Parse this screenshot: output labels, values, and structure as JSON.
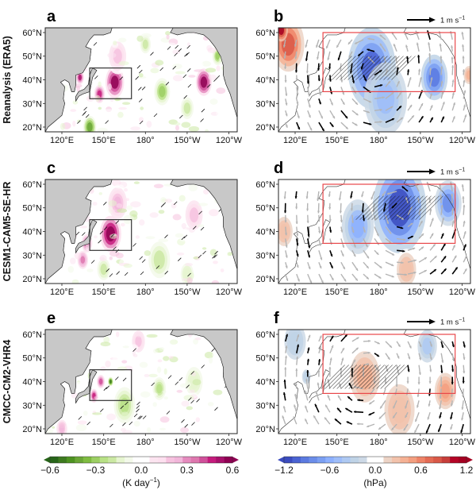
{
  "figure": {
    "panels": [
      {
        "letter": "a",
        "row": 0,
        "col": 0,
        "kind": "heating",
        "row_label": "Reanalysis (ERA5)"
      },
      {
        "letter": "b",
        "row": 0,
        "col": 1,
        "kind": "slp_wind",
        "ref_arrow": "1 m s",
        "ref_exp": "−1"
      },
      {
        "letter": "c",
        "row": 1,
        "col": 0,
        "kind": "heating",
        "row_label": "CESM1-CAM5-SE-HR"
      },
      {
        "letter": "d",
        "row": 1,
        "col": 1,
        "kind": "slp_wind",
        "ref_arrow": "1 m s",
        "ref_exp": "−1"
      },
      {
        "letter": "e",
        "row": 2,
        "col": 0,
        "kind": "heating",
        "row_label": "CMCC-CM2-VHR4"
      },
      {
        "letter": "f",
        "row": 2,
        "col": 1,
        "kind": "slp_wind",
        "ref_arrow": "1 m s",
        "ref_exp": "−1"
      }
    ],
    "x_tick_labels": [
      "120°E",
      "150°E",
      "180°",
      "150°W",
      "120°W"
    ],
    "y_tick_labels": [
      "60°N",
      "50°N",
      "40°N",
      "30°N",
      "20°N"
    ],
    "colors": {
      "land": "#c8c8c8",
      "black_box": "#333333",
      "red_box": "#e8474a",
      "wind_sig": "#000000",
      "wind_insig": "#b4b4b4"
    }
  },
  "chart_data": [
    {
      "type": "heatmap",
      "panel": "a",
      "title": "a",
      "row_label": "Reanalysis (ERA5)",
      "variable": "diabatic heating anomaly",
      "units": "K day−1",
      "xlim_deg_east": [
        108,
        246
      ],
      "ylim_deg_north": [
        18,
        62
      ],
      "x_ticks": [
        120,
        150,
        180,
        210,
        240
      ],
      "y_ticks": [
        20,
        30,
        40,
        50,
        60
      ],
      "box": {
        "lon": [
          140,
          170
        ],
        "lat": [
          32,
          45
        ],
        "color": "black"
      },
      "features": [
        {
          "lon": 158,
          "lat": 39,
          "value": 0.55,
          "radius_deg": 7
        },
        {
          "lon": 147,
          "lat": 34,
          "value": 0.45,
          "radius_deg": 4
        },
        {
          "lon": 133,
          "lat": 41,
          "value": 0.5,
          "radius_deg": 3
        },
        {
          "lon": 222,
          "lat": 39,
          "value": 0.55,
          "radius_deg": 6
        },
        {
          "lon": 160,
          "lat": 50,
          "value": 0.2,
          "radius_deg": 8
        },
        {
          "lon": 192,
          "lat": 35,
          "value": -0.3,
          "radius_deg": 6
        },
        {
          "lon": 210,
          "lat": 28,
          "value": -0.2,
          "radius_deg": 6
        },
        {
          "lon": 232,
          "lat": 50,
          "value": -0.3,
          "radius_deg": 4
        },
        {
          "lon": 140,
          "lat": 20,
          "value": -0.4,
          "radius_deg": 5
        },
        {
          "lon": 180,
          "lat": 55,
          "value": -0.2,
          "radius_deg": 5
        }
      ]
    },
    {
      "type": "heatmap",
      "panel": "b",
      "title": "b",
      "variable": "sea level pressure anomaly with wind vectors",
      "units": "hPa",
      "xlim_deg_east": [
        108,
        246
      ],
      "ylim_deg_north": [
        18,
        62
      ],
      "x_ticks": [
        120,
        150,
        180,
        210,
        240
      ],
      "y_ticks": [
        20,
        30,
        40,
        50,
        60
      ],
      "box": {
        "lon": [
          140,
          235
        ],
        "lat": [
          35,
          60
        ],
        "color": "red"
      },
      "reference_vector": "1 m s−1",
      "features": [
        {
          "lon": 175,
          "lat": 45,
          "value": -1.0,
          "radius_deg": 18
        },
        {
          "lon": 220,
          "lat": 41,
          "value": -0.9,
          "radius_deg": 10
        },
        {
          "lon": 185,
          "lat": 32,
          "value": -0.5,
          "radius_deg": 16
        },
        {
          "lon": 115,
          "lat": 55,
          "value": 0.8,
          "radius_deg": 12
        },
        {
          "lon": 110,
          "lat": 61,
          "value": 1.1,
          "radius_deg": 5
        },
        {
          "lon": 245,
          "lat": 42,
          "value": 0.4,
          "radius_deg": 5
        }
      ]
    },
    {
      "type": "heatmap",
      "panel": "c",
      "title": "c",
      "row_label": "CESM1-CAM5-SE-HR",
      "variable": "diabatic heating anomaly",
      "units": "K day−1",
      "xlim_deg_east": [
        108,
        246
      ],
      "ylim_deg_north": [
        18,
        62
      ],
      "x_ticks": [
        120,
        150,
        180,
        210,
        240
      ],
      "y_ticks": [
        20,
        30,
        40,
        50,
        60
      ],
      "box": {
        "lon": [
          140,
          170
        ],
        "lat": [
          32,
          45
        ],
        "color": "black"
      },
      "features": [
        {
          "lon": 155,
          "lat": 39,
          "value": 0.6,
          "radius_deg": 8
        },
        {
          "lon": 138,
          "lat": 35,
          "value": 0.4,
          "radius_deg": 4
        },
        {
          "lon": 135,
          "lat": 28,
          "value": 0.35,
          "radius_deg": 4
        },
        {
          "lon": 160,
          "lat": 52,
          "value": 0.25,
          "radius_deg": 7
        },
        {
          "lon": 215,
          "lat": 47,
          "value": 0.2,
          "radius_deg": 8
        },
        {
          "lon": 190,
          "lat": 28,
          "value": -0.2,
          "radius_deg": 10
        },
        {
          "lon": 150,
          "lat": 24,
          "value": -0.2,
          "radius_deg": 6
        },
        {
          "lon": 210,
          "lat": 22,
          "value": -0.15,
          "radius_deg": 6
        }
      ]
    },
    {
      "type": "heatmap",
      "panel": "d",
      "title": "d",
      "variable": "sea level pressure anomaly with wind vectors",
      "units": "hPa",
      "xlim_deg_east": [
        108,
        246
      ],
      "ylim_deg_north": [
        18,
        62
      ],
      "x_ticks": [
        120,
        150,
        180,
        210,
        240
      ],
      "y_ticks": [
        20,
        30,
        40,
        50,
        60
      ],
      "box": {
        "lon": [
          140,
          235
        ],
        "lat": [
          35,
          60
        ],
        "color": "red"
      },
      "reference_vector": "1 m s−1",
      "features": [
        {
          "lon": 195,
          "lat": 50,
          "value": -1.1,
          "radius_deg": 20
        },
        {
          "lon": 165,
          "lat": 42,
          "value": -0.6,
          "radius_deg": 12
        },
        {
          "lon": 230,
          "lat": 52,
          "value": -0.8,
          "radius_deg": 10
        },
        {
          "lon": 200,
          "lat": 24,
          "value": 0.3,
          "radius_deg": 9
        },
        {
          "lon": 112,
          "lat": 40,
          "value": 0.3,
          "radius_deg": 8
        }
      ]
    },
    {
      "type": "heatmap",
      "panel": "e",
      "title": "e",
      "row_label": "CMCC-CM2-VHR4",
      "variable": "diabatic heating anomaly",
      "units": "K day−1",
      "xlim_deg_east": [
        108,
        246
      ],
      "ylim_deg_north": [
        18,
        62
      ],
      "x_ticks": [
        120,
        150,
        180,
        210,
        240
      ],
      "y_ticks": [
        20,
        30,
        40,
        50,
        60
      ],
      "box": {
        "lon": [
          140,
          170
        ],
        "lat": [
          32,
          45
        ],
        "color": "black"
      },
      "features": [
        {
          "lon": 148,
          "lat": 40,
          "value": 0.4,
          "radius_deg": 3
        },
        {
          "lon": 143,
          "lat": 34,
          "value": 0.45,
          "radius_deg": 3
        },
        {
          "lon": 155,
          "lat": 40,
          "value": -0.5,
          "radius_deg": 2
        },
        {
          "lon": 165,
          "lat": 30,
          "value": -0.25,
          "radius_deg": 8
        },
        {
          "lon": 190,
          "lat": 37,
          "value": -0.25,
          "radius_deg": 5
        },
        {
          "lon": 215,
          "lat": 40,
          "value": -0.15,
          "radius_deg": 8
        },
        {
          "lon": 175,
          "lat": 57,
          "value": 0.2,
          "radius_deg": 6
        },
        {
          "lon": 120,
          "lat": 20,
          "value": 0.25,
          "radius_deg": 4
        }
      ]
    },
    {
      "type": "heatmap",
      "panel": "f",
      "title": "f",
      "variable": "sea level pressure anomaly with wind vectors",
      "units": "hPa",
      "xlim_deg_east": [
        108,
        246
      ],
      "ylim_deg_north": [
        18,
        62
      ],
      "x_ticks": [
        120,
        150,
        180,
        210,
        240
      ],
      "y_ticks": [
        20,
        30,
        40,
        50,
        60
      ],
      "box": {
        "lon": [
          140,
          235
        ],
        "lat": [
          35,
          60
        ],
        "color": "red"
      },
      "reference_vector": "1 m s−1",
      "features": [
        {
          "lon": 170,
          "lat": 42,
          "value": 0.4,
          "radius_deg": 14
        },
        {
          "lon": 228,
          "lat": 36,
          "value": 0.5,
          "radius_deg": 8
        },
        {
          "lon": 195,
          "lat": 28,
          "value": 0.3,
          "radius_deg": 14
        },
        {
          "lon": 215,
          "lat": 55,
          "value": -0.4,
          "radius_deg": 9
        },
        {
          "lon": 120,
          "lat": 57,
          "value": -0.3,
          "radius_deg": 10
        },
        {
          "lon": 128,
          "lat": 42,
          "value": -0.3,
          "radius_deg": 4
        }
      ]
    },
    {
      "type": "colorbar",
      "name": "heating",
      "label": "(K day",
      "label_exp": "−1",
      "label_close": ")",
      "tick_labels": [
        "−0.6",
        "−0.3",
        "0.0",
        "0.3",
        "0.6"
      ],
      "ticks": [
        -0.6,
        -0.3,
        0.0,
        0.3,
        0.6
      ],
      "range": [
        -0.6,
        0.6
      ],
      "extend": "both",
      "colors": [
        "#276419",
        "#3d7a1f",
        "#4d9221",
        "#6aa636",
        "#7fbc41",
        "#9ccf63",
        "#b8e186",
        "#cbe8a3",
        "#e6f5d0",
        "#f3f9ea",
        "#ffffff",
        "#ffffff",
        "#fce4f0",
        "#fde0ef",
        "#f6c2df",
        "#f1b6da",
        "#e58bbe",
        "#de77ae",
        "#d0509a",
        "#c51b7d",
        "#a8106b",
        "#8e0152"
      ]
    },
    {
      "type": "colorbar",
      "name": "slp",
      "label": "(hPa)",
      "tick_labels": [
        "−1.2",
        "−0.6",
        "0.0",
        "0.6",
        "1.2"
      ],
      "ticks": [
        -1.2,
        -0.6,
        0.0,
        0.6,
        1.2
      ],
      "range": [
        -1.2,
        1.2
      ],
      "extend": "both",
      "colors": [
        "#3b4cc0",
        "#4a63d3",
        "#5b7ae0",
        "#6b8de9",
        "#7b9ff2",
        "#8db0fe",
        "#9ebdf9",
        "#aec9f2",
        "#bfd3e6",
        "#cdd9e6",
        "#ffffff",
        "#ffffff",
        "#ecd3c5",
        "#f2c2ab",
        "#f5b194",
        "#f39f80",
        "#ee8468",
        "#e46b54",
        "#d95847",
        "#c73e3a",
        "#b40426",
        "#a50021"
      ]
    }
  ]
}
